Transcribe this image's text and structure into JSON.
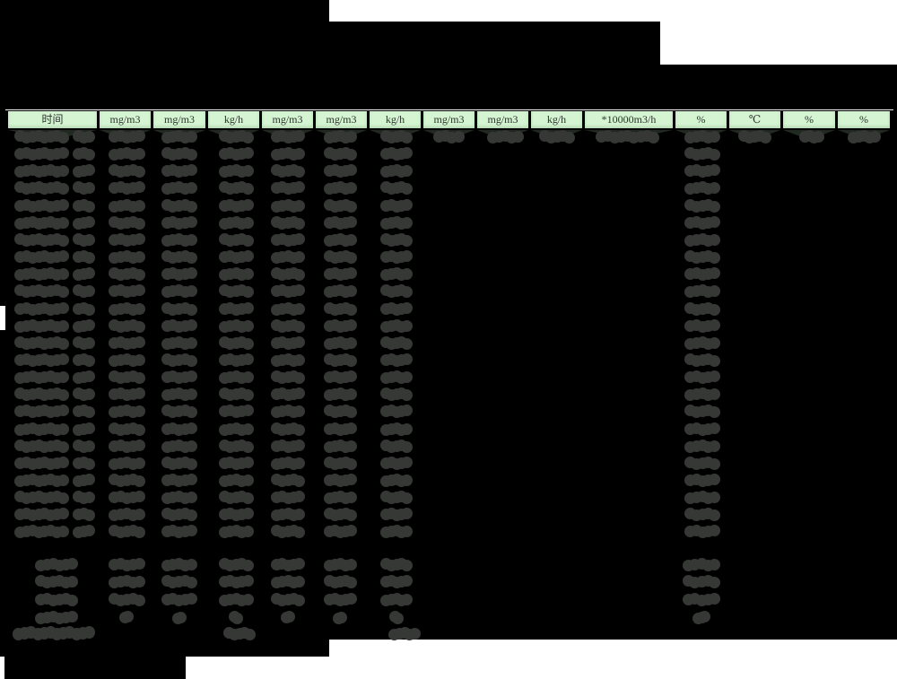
{
  "table": {
    "headers": [
      "时间",
      "mg/m3",
      "mg/m3",
      "kg/h",
      "mg/m3",
      "mg/m3",
      "kg/h",
      "mg/m3",
      "mg/m3",
      "kg/h",
      "*10000m3/h",
      "%",
      "℃",
      "%",
      "%"
    ],
    "data_row_count": 24,
    "summary_row_count": 4,
    "has_count_row": true,
    "values_redacted": true
  },
  "colors": {
    "page_background": "#ffffff",
    "redaction": "#000000",
    "header_background": "#d4f4d2",
    "header_text": "#2c342c",
    "header_shadow": "#202a20",
    "blob": "#363836"
  }
}
